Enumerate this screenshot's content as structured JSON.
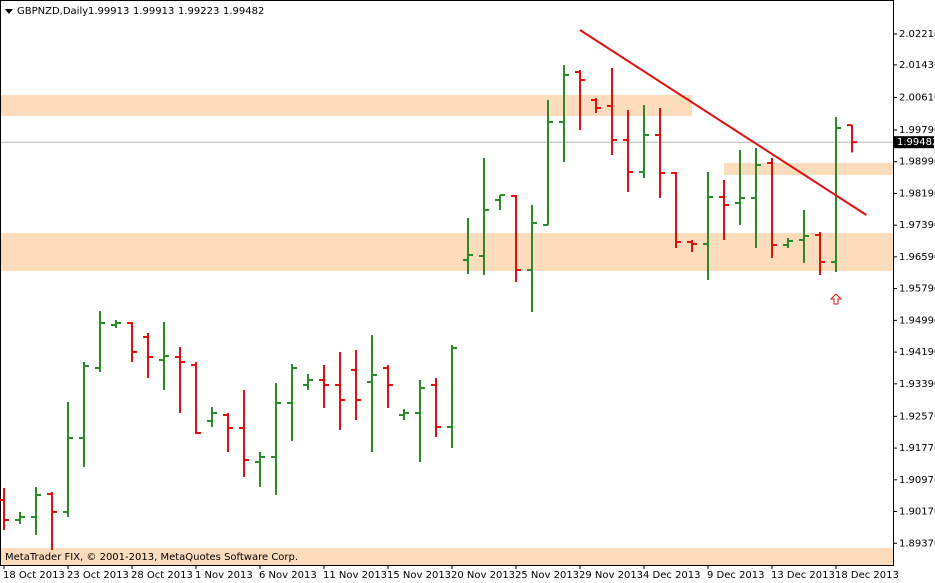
{
  "chart_data": {
    "type": "ohlc",
    "symbol": "GBPNZD,Daily",
    "footer": "MetaTrader FIX, © 2001-2013, MetaQuotes Software Corp.",
    "categories": [
      "18 Oct 2013",
      null,
      null,
      null,
      "23 Oct 2013",
      null,
      null,
      null,
      "28 Oct 2013",
      null,
      null,
      null,
      "1 Nov 2013",
      null,
      null,
      null,
      "6 Nov 2013",
      null,
      null,
      null,
      "11 Nov 2013",
      null,
      null,
      null,
      "15 Nov 2013",
      null,
      null,
      null,
      "20 Nov 2013",
      null,
      null,
      null,
      "25 Nov 2013",
      null,
      null,
      null,
      "29 Nov 2013",
      null,
      null,
      null,
      "4 Dec 2013",
      null,
      null,
      null,
      "9 Dec 2013",
      null,
      null,
      null,
      "13 Dec 2013",
      null,
      null,
      null,
      "18 Dec 2013",
      null
    ],
    "open": [
      1.90461,
      1.89957,
      1.90033,
      1.90612,
      1.90159,
      1.92024,
      1.93789,
      1.94873,
      1.94924,
      1.94571,
      1.93991,
      1.94067,
      1.93865,
      1.92453,
      1.92604,
      1.92276,
      1.91419,
      1.91545,
      1.92907,
      1.93361,
      1.93487,
      1.93361,
      1.93739,
      1.93436,
      1.93789,
      1.92604,
      1.92655,
      1.93361,
      1.92302,
      1.96512,
      1.96613,
      1.98025,
      1.98126,
      1.9626,
      1.97395,
      1.99991,
      2.01252,
      2.00546,
      2.00395,
      1.99538,
      1.98731,
      1.99664,
      1.98706,
      1.96966,
      1.96915,
      1.981,
      1.97949,
      1.98075,
      1.98958,
      1.9689,
      1.97016,
      1.97142,
      1.96462,
      1.99913
    ],
    "high": [
      1.90764,
      1.90159,
      1.90789,
      1.90663,
      1.92932,
      1.9394,
      1.95226,
      1.94999,
      1.94949,
      1.94672,
      1.94949,
      1.94319,
      1.9394,
      1.92806,
      1.92655,
      1.93235,
      1.91671,
      1.93411,
      1.9389,
      1.93638,
      1.93865,
      1.94193,
      1.94243,
      1.94621,
      1.93865,
      1.92755,
      1.93487,
      1.93537,
      1.94369,
      1.97571,
      1.99084,
      1.98151,
      1.98151,
      1.97899,
      2.00546,
      2.01428,
      2.01302,
      2.00596,
      2.01353,
      2.00294,
      2.0042,
      2.00344,
      1.98731,
      1.97016,
      1.98731,
      1.98529,
      1.99285,
      1.99336,
      1.99084,
      1.97067,
      1.97773,
      1.97218,
      2.00117,
      1.99913
    ],
    "low": [
      1.89705,
      1.89856,
      1.89579,
      1.89201,
      1.90033,
      1.91293,
      1.93688,
      1.94798,
      1.9394,
      1.93537,
      1.93235,
      1.92655,
      1.92125,
      1.92302,
      1.91671,
      1.91041,
      1.90789,
      1.90587,
      1.91949,
      1.93235,
      1.92781,
      1.92226,
      1.92478,
      1.91671,
      1.92781,
      1.92478,
      1.91419,
      1.9205,
      1.91772,
      1.96159,
      1.96134,
      1.97773,
      1.95957,
      1.95201,
      1.97395,
      1.98983,
      1.9979,
      2.00218,
      1.99159,
      1.98227,
      1.98579,
      1.98075,
      1.96815,
      1.96714,
      1.96008,
      1.97016,
      1.97395,
      1.96815,
      1.96563,
      1.96815,
      1.96437,
      1.96134,
      1.9621,
      1.99223
    ],
    "close": [
      1.89957,
      1.90033,
      1.90587,
      1.90159,
      1.92024,
      1.9384,
      1.94924,
      1.94924,
      1.94193,
      1.94067,
      1.94092,
      1.9394,
      1.9215,
      1.92655,
      1.92276,
      1.9147,
      1.91545,
      1.92907,
      1.93789,
      1.93487,
      1.93361,
      1.92982,
      1.92982,
      1.93613,
      1.93361,
      1.92655,
      1.93285,
      1.92302,
      1.94293,
      1.96638,
      1.97773,
      1.98151,
      1.9626,
      1.97445,
      1.99991,
      2.01176,
      2.0105,
      2.00344,
      1.99538,
      1.98731,
      1.99664,
      1.98706,
      1.96966,
      1.96915,
      1.981,
      1.97899,
      1.98075,
      1.98907,
      1.9689,
      1.96991,
      1.97117,
      1.96462,
      1.9984,
      1.99482
    ],
    "up_color": "#2a8a2a",
    "down_color": "#e01010",
    "ylim": [
      1.88822,
      2.03067
    ],
    "yticks": [
      {
        "value": 2.0221,
        "label": "2.02210"
      },
      {
        "value": 2.0143,
        "label": "2.01430"
      },
      {
        "value": 2.0061,
        "label": "2.00610"
      },
      {
        "value": 1.9979,
        "label": "1.99790"
      },
      {
        "value": 1.9899,
        "label": "1.98990"
      },
      {
        "value": 1.9819,
        "label": "1.98190"
      },
      {
        "value": 1.9739,
        "label": "1.97390"
      },
      {
        "value": 1.9659,
        "label": "1.96590"
      },
      {
        "value": 1.9579,
        "label": "1.95790"
      },
      {
        "value": 1.9499,
        "label": "1.94990"
      },
      {
        "value": 1.9419,
        "label": "1.94190"
      },
      {
        "value": 1.9339,
        "label": "1.93390"
      },
      {
        "value": 1.9257,
        "label": "1.92570"
      },
      {
        "value": 1.9177,
        "label": "1.91770"
      },
      {
        "value": 1.9097,
        "label": "1.90970"
      },
      {
        "value": 1.9017,
        "label": "1.90170"
      },
      {
        "value": 1.8937,
        "label": "1.89370"
      }
    ],
    "zones": [
      {
        "high": 2.00672,
        "low": 2.00143,
        "start": null,
        "end": 43
      },
      {
        "high": 1.98958,
        "low": 1.98655,
        "start": 45,
        "end": null
      },
      {
        "high": 1.97193,
        "low": 1.96235,
        "start": null,
        "end": null
      },
      {
        "high": 1.89251,
        "low": 1.88822,
        "start": null,
        "end": null
      }
    ],
    "zone_color": "#fddcbc",
    "trendline": {
      "start": 36,
      "end": 53.9,
      "from": 2.02311,
      "to": 1.97647,
      "color": "#e01010"
    }
  }
}
